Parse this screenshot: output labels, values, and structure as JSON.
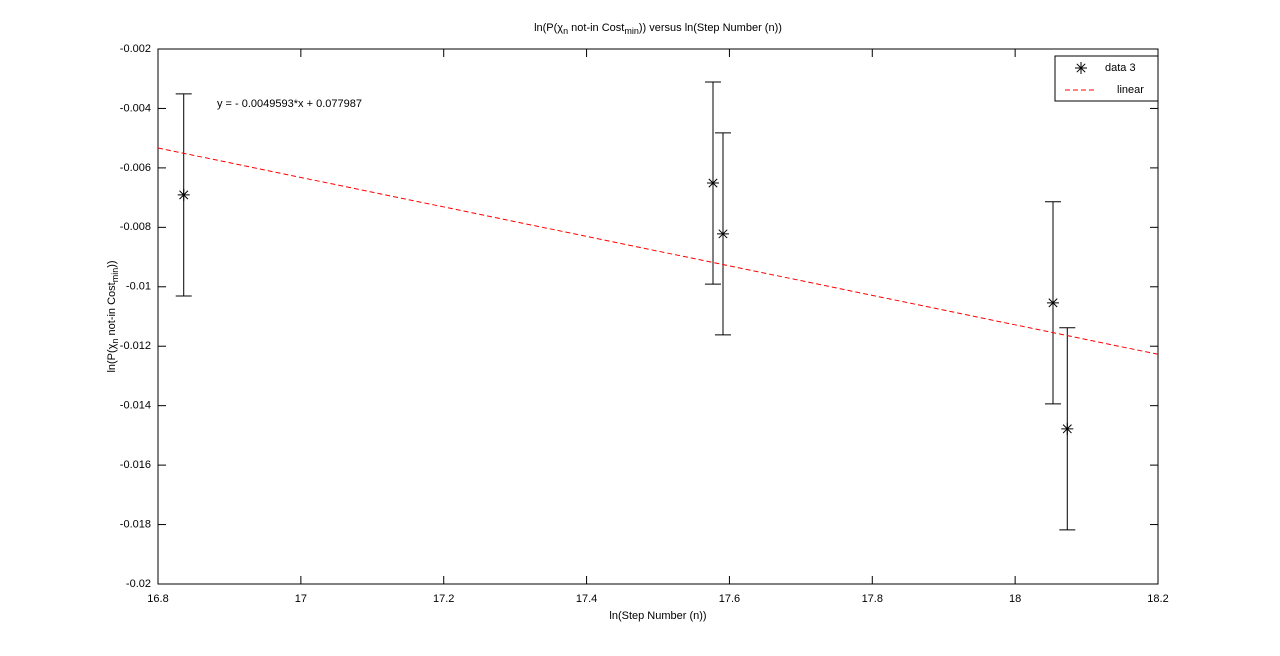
{
  "chart_data": {
    "type": "errorbar",
    "title": [
      {
        "text": "ln(P(χ"
      },
      {
        "text": "n",
        "sub": true
      },
      {
        "text": " not-in Cost"
      },
      {
        "text": "min",
        "sub": true
      },
      {
        "text": ")) versus ln(Step Number (n))"
      }
    ],
    "xlabel": "ln(Step Number (n))",
    "ylabel": [
      {
        "text": "ln(P(χ"
      },
      {
        "text": "n",
        "sub": true
      },
      {
        "text": " not-in Cost"
      },
      {
        "text": "min",
        "sub": true
      },
      {
        "text": "))"
      }
    ],
    "annotation": "y = - 0.0049593*x + 0.077987",
    "xlim": [
      16.8,
      18.2
    ],
    "xticks": [
      16.8,
      17,
      17.2,
      17.4,
      17.6,
      17.8,
      18,
      18.2
    ],
    "ylim": [
      -0.02,
      -0.002
    ],
    "yticks": [
      -0.02,
      -0.018,
      -0.016,
      -0.014,
      -0.012,
      -0.01,
      -0.008,
      -0.006,
      -0.004,
      -0.002
    ],
    "legend": "top-right",
    "series": [
      {
        "name": "data 3",
        "color": "#000000",
        "marker": "asterisk",
        "x": [
          16.836,
          17.577,
          17.591,
          18.053,
          18.073
        ],
        "values": [
          -0.00691,
          -0.00651,
          -0.00822,
          -0.01054,
          -0.01478
        ],
        "errors": [
          0.0034,
          0.0034,
          0.0034,
          0.0034,
          0.0034
        ]
      },
      {
        "name": "linear",
        "color": "#ff0000",
        "style": "dashed",
        "x": [
          16.8,
          18.2
        ],
        "values": [
          -0.00533,
          -0.012272
        ]
      }
    ]
  }
}
